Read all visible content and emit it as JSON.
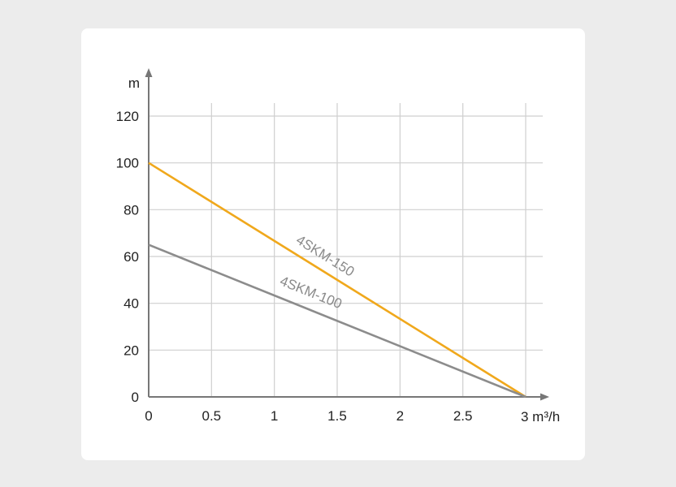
{
  "chart_data": {
    "type": "line",
    "title": "",
    "xlabel": "3 m³/h",
    "ylabel": "m",
    "xlim": [
      0,
      3
    ],
    "ylim": [
      0,
      120
    ],
    "x_ticks": [
      0,
      0.5,
      1,
      1.5,
      2,
      2.5,
      3
    ],
    "x_tick_labels": [
      "0",
      "0.5",
      "1",
      "1.5",
      "2",
      "2.5",
      ""
    ],
    "y_ticks": [
      0,
      20,
      40,
      60,
      80,
      100,
      120
    ],
    "y_tick_labels": [
      "0",
      "20",
      "40",
      "60",
      "80",
      "100",
      "120"
    ],
    "grid": true,
    "series": [
      {
        "name": "4SKM-150",
        "color": "#f0a81c",
        "x": [
          0,
          3
        ],
        "y": [
          100,
          0
        ]
      },
      {
        "name": "4SKM-100",
        "color": "#8c8c8c",
        "x": [
          0,
          3
        ],
        "y": [
          65,
          0
        ]
      }
    ]
  }
}
